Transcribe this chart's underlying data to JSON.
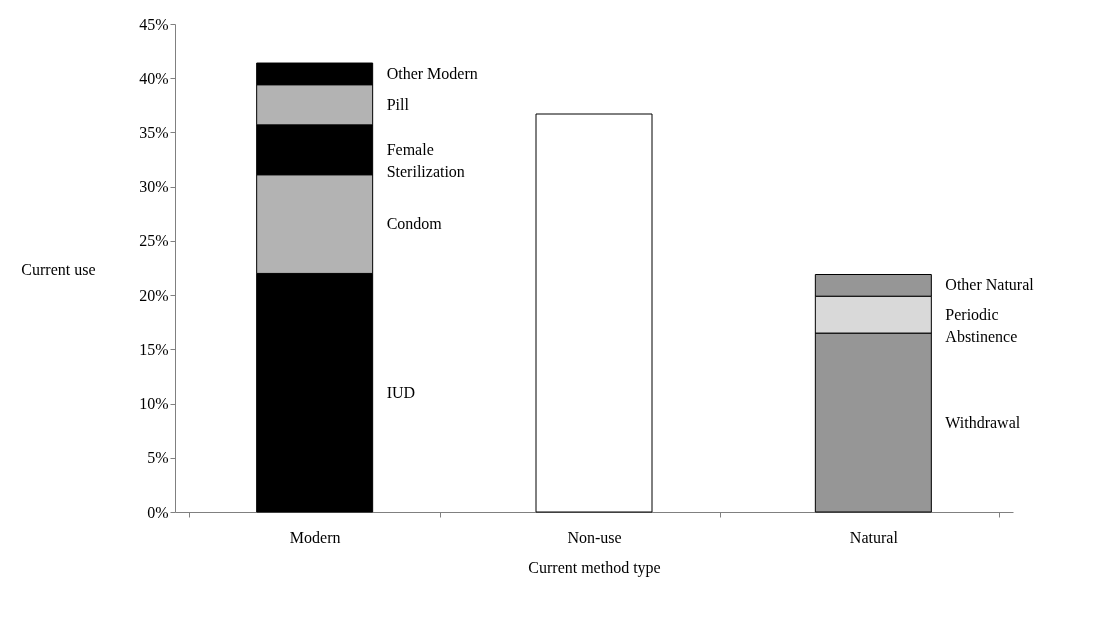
{
  "chart_data": {
    "type": "bar",
    "stacked": true,
    "xlabel": "Current method type",
    "ylabel": "Current use",
    "categories": [
      "Modern",
      "Non-use",
      "Natural"
    ],
    "series": [
      {
        "name": "IUD",
        "color": "#000000",
        "values": [
          22.0,
          null,
          null
        ]
      },
      {
        "name": "Condom",
        "color": "#b3b3b3",
        "values": [
          9.1,
          null,
          null
        ]
      },
      {
        "name": "Female Sterilization",
        "color": "#000000",
        "values": [
          4.6,
          null,
          null
        ]
      },
      {
        "name": "Pill",
        "color": "#b3b3b3",
        "values": [
          3.7,
          null,
          null
        ]
      },
      {
        "name": "Other Modern",
        "color": "#000000",
        "values": [
          2.0,
          null,
          null
        ]
      },
      {
        "color": "#ffffff",
        "values": [
          null,
          36.7,
          null
        ]
      },
      {
        "name": "Withdrawal",
        "color": "#969696",
        "values": [
          null,
          null,
          16.5
        ]
      },
      {
        "name": "Periodic Abstinence",
        "color": "#d9d9d9",
        "values": [
          null,
          null,
          3.4
        ]
      },
      {
        "name": "Other Natural",
        "color": "#969696",
        "values": [
          null,
          null,
          2.0
        ]
      }
    ],
    "ylim": [
      0,
      45
    ],
    "yticks": [
      {
        "value": 0,
        "label": "0%"
      },
      {
        "value": 5,
        "label": "5%"
      },
      {
        "value": 10,
        "label": "10%"
      },
      {
        "value": 15,
        "label": "15%"
      },
      {
        "value": 20,
        "label": "20%"
      },
      {
        "value": 25,
        "label": "25%"
      },
      {
        "value": 30,
        "label": "30%"
      },
      {
        "value": 35,
        "label": "35%"
      },
      {
        "value": 40,
        "label": "40%"
      },
      {
        "value": 45,
        "label": "45%"
      }
    ],
    "grid": false
  }
}
